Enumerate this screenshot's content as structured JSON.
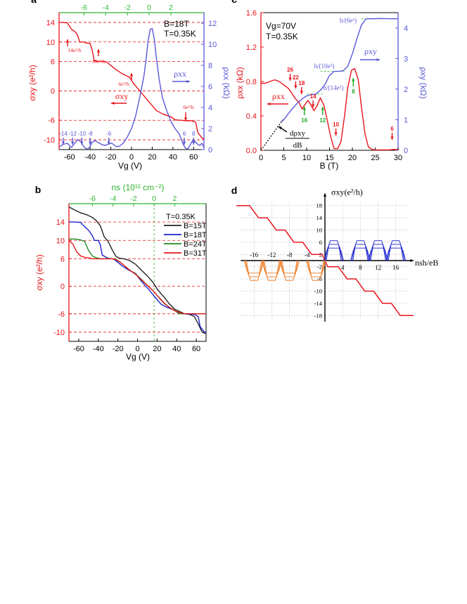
{
  "chart_data": [
    {
      "panel": "a",
      "type": "line",
      "panel_label": "a",
      "annotations_top": [
        "B=18T",
        "T=0.35K"
      ],
      "xlabel": "Vg (V)",
      "ylabel_left": "σxy (e²/h)",
      "ylabel_right": "ρxx (kΩ)",
      "xlim": [
        -70,
        70
      ],
      "ylim_left": [
        -12,
        16
      ],
      "ylim_right": [
        0,
        13
      ],
      "x_ticks": [
        "-60",
        "-40",
        "-20",
        "0",
        "20",
        "40",
        "60"
      ],
      "top_ticks": [
        "-6",
        "-4",
        "-2",
        "0",
        "2"
      ],
      "y_ticks_left": [
        "-10",
        "-6",
        "0",
        "6",
        "10",
        "14"
      ],
      "y_ticks_right": [
        "0",
        "2",
        "4",
        "6",
        "8",
        "10",
        "12"
      ],
      "plateau_lines": [
        14,
        10,
        6,
        -6,
        -10
      ],
      "plateau_labels": [
        "14e²/h",
        "10e²/h",
        "6e²/h",
        "6e²/h"
      ],
      "series_labels": [
        "ρxx",
        "σxy"
      ],
      "filling_labels": [
        "-14",
        "-12",
        "-10",
        "-8",
        "-6",
        "6",
        "8"
      ],
      "series": [
        {
          "name": "σxy",
          "axis": "left",
          "color": "#e8141b",
          "x": [
            -70,
            -66,
            -62,
            -58,
            -54,
            -52,
            -50,
            -46,
            -44,
            -40,
            -38,
            -36,
            -30,
            -26,
            -24,
            -20,
            -16,
            -14,
            -8,
            -2,
            2,
            6,
            12,
            16,
            20,
            24,
            30,
            34,
            38,
            42,
            46,
            48,
            52,
            58,
            62,
            64,
            68,
            70
          ],
          "y": [
            14,
            14,
            13.9,
            12.6,
            12.0,
            11.3,
            10.0,
            10.0,
            9.8,
            9.7,
            8.3,
            6.2,
            6.0,
            6.0,
            5.9,
            5.2,
            4.5,
            4.2,
            3.4,
            2.8,
            1.5,
            0.5,
            -1.0,
            -2.0,
            -3.0,
            -4.0,
            -4.7,
            -5.0,
            -5.3,
            -5.9,
            -6.0,
            -6.0,
            -6.1,
            -6.1,
            -6.4,
            -8.5,
            -9.6,
            -9.9
          ]
        },
        {
          "name": "ρxx",
          "axis": "right",
          "color": "#5a58d8",
          "x": [
            -70,
            -66,
            -62,
            -58,
            -55,
            -52,
            -49,
            -46,
            -43,
            -41,
            -38,
            -35,
            -31,
            -28,
            -25,
            -22,
            -19,
            -15,
            -12,
            -8,
            -4,
            0,
            4,
            8,
            12,
            14,
            16,
            18,
            20,
            22,
            24,
            27,
            30,
            34,
            38,
            42,
            46,
            48,
            50,
            52,
            54,
            56,
            58,
            60,
            62,
            64,
            66,
            68,
            70
          ],
          "y": [
            0.25,
            0.5,
            0.6,
            0.2,
            0.6,
            0.95,
            0.75,
            0.25,
            0.05,
            0.15,
            0.7,
            0.85,
            0.6,
            0.45,
            0.4,
            0.55,
            0.6,
            0.3,
            0.3,
            0.6,
            1.2,
            2.0,
            3.2,
            5.0,
            7.0,
            8.5,
            10.3,
            11.4,
            11.5,
            10.5,
            8.7,
            6.5,
            4.9,
            3.7,
            2.7,
            2.0,
            1.5,
            1.0,
            0.5,
            0.15,
            0.05,
            0.3,
            0.7,
            0.9,
            0.7,
            0.5,
            0.4,
            0.6,
            0.2
          ]
        }
      ]
    },
    {
      "panel": "b",
      "type": "line",
      "panel_label": "b",
      "xlabel": "Vg (V)",
      "ylabel_left": "σxy (e²/h)",
      "top_axis_label": "ns (10¹² cm⁻²)",
      "xlim": [
        -70,
        70
      ],
      "ylim": [
        -12,
        18
      ],
      "x_ticks": [
        "-60",
        "-40",
        "-20",
        "0",
        "20",
        "40",
        "60"
      ],
      "top_ticks": [
        "-6",
        "-4",
        "-2",
        "0",
        "2"
      ],
      "y_ticks": [
        "-10",
        "-6",
        "0",
        "6",
        "10",
        "14"
      ],
      "plateau_lines": [
        14,
        10,
        6,
        -6,
        -10
      ],
      "dirac_point_vg": 17,
      "legend_title": "T=0.35K",
      "legend_position": "top-right",
      "series": [
        {
          "name": "B=15T",
          "color": "#222222",
          "x": [
            -70,
            -64,
            -58,
            -52,
            -46,
            -42,
            -38,
            -34,
            -30,
            -26,
            -22,
            -18,
            -14,
            -8,
            -2,
            4,
            8,
            12,
            16,
            20,
            24,
            28,
            32,
            38,
            44,
            48,
            50,
            54,
            58,
            62,
            66,
            68,
            70
          ],
          "y": [
            17.3,
            16.6,
            16.0,
            15.6,
            15.0,
            14.3,
            13.2,
            10.8,
            9.8,
            8.0,
            6.5,
            6.1,
            6.0,
            5.6,
            4.8,
            3.5,
            2.7,
            1.8,
            0.8,
            -0.6,
            -1.6,
            -2.6,
            -3.7,
            -5.0,
            -5.6,
            -6.0,
            -6.0,
            -6.2,
            -6.6,
            -8.2,
            -10.0,
            -10.2,
            -10.3
          ]
        },
        {
          "name": "B=18T",
          "color": "#1a22cc",
          "x": [
            -70,
            -64,
            -58,
            -54,
            -50,
            -46,
            -44,
            -40,
            -38,
            -36,
            -30,
            -26,
            -24,
            -20,
            -16,
            -14,
            -8,
            -2,
            2,
            6,
            12,
            16,
            20,
            24,
            30,
            34,
            38,
            42,
            46,
            48,
            52,
            58,
            62,
            64,
            68,
            70
          ],
          "y": [
            14,
            14,
            13.9,
            13,
            12.2,
            11.0,
            10.0,
            10.0,
            9.0,
            6.8,
            6.1,
            6.0,
            5.9,
            5.2,
            4.5,
            4.2,
            3.4,
            2.8,
            1.6,
            0.6,
            -0.8,
            -1.9,
            -2.9,
            -3.9,
            -4.6,
            -4.9,
            -5.3,
            -5.9,
            -6.0,
            -6.0,
            -6.1,
            -6.1,
            -6.6,
            -8.8,
            -9.9,
            -10.0
          ]
        },
        {
          "name": "B=24T",
          "color": "#1f8a1f",
          "x": [
            -70,
            -64,
            -58,
            -54,
            -50,
            -46,
            -42,
            -38,
            -34,
            -30,
            -26,
            -22,
            -18,
            -14,
            -8,
            -2,
            4,
            10,
            16,
            20,
            24,
            28,
            32,
            36,
            40,
            44,
            48,
            52,
            56,
            60,
            64,
            68,
            70
          ],
          "y": [
            10.3,
            10.3,
            10.1,
            9.8,
            7.8,
            6.6,
            6.2,
            6.0,
            6.0,
            6.0,
            6.0,
            5.9,
            5.3,
            4.6,
            3.5,
            2.7,
            1.5,
            0.2,
            -1.0,
            -2.0,
            -3.0,
            -3.9,
            -4.5,
            -5.0,
            -5.6,
            -6.0,
            -6.0,
            -6.0,
            -6.0,
            -6.0,
            -6.0,
            -6.0,
            -6.0
          ]
        },
        {
          "name": "B=31T",
          "color": "#e8141b",
          "x": [
            -70,
            -66,
            -62,
            -58,
            -54,
            -50,
            -46,
            -42,
            -38,
            -34,
            -30,
            -26,
            -22,
            -18,
            -14,
            -8,
            -2,
            4,
            10,
            16,
            20,
            24,
            28,
            32,
            36,
            40,
            44,
            48,
            52,
            56,
            60,
            64,
            68,
            70
          ],
          "y": [
            10.0,
            9.2,
            7.5,
            6.6,
            6.3,
            6.2,
            6.0,
            6.0,
            6.0,
            6.0,
            6.0,
            6.0,
            5.8,
            5.3,
            4.6,
            3.5,
            2.6,
            1.4,
            0.2,
            -1.0,
            -2.0,
            -2.9,
            -3.8,
            -4.5,
            -5.1,
            -5.5,
            -5.8,
            -6.0,
            -6.0,
            -6.0,
            -6.0,
            -6.0,
            -6.0,
            -6.0
          ]
        }
      ]
    },
    {
      "panel": "c",
      "type": "line",
      "panel_label": "c",
      "annotations_top": [
        "Vg=70V",
        "T=0.35K"
      ],
      "xlabel": "B (T)",
      "ylabel_left": "ρxx (kΩ)",
      "ylabel_right": "ρxy (kΩ)",
      "xlim": [
        0,
        30
      ],
      "ylim_left": [
        0,
        1.6
      ],
      "ylim_right": [
        0,
        4.5
      ],
      "x_ticks": [
        "0",
        "5",
        "10",
        "15",
        "20",
        "25",
        "30"
      ],
      "y_ticks_left": [
        "0.0",
        "0.4",
        "0.8",
        "1.2",
        "1.6"
      ],
      "y_ticks_right": [
        "0",
        "1",
        "2",
        "3",
        "4"
      ],
      "plateau_labels": [
        "h/(6e²)",
        "h/(10e²)",
        "h/(14e²)"
      ],
      "plateau_values_kohm": [
        4.3,
        2.58,
        1.84
      ],
      "series_labels": [
        "ρxx",
        "ρxy"
      ],
      "slope_label": [
        "dρxy",
        "dB"
      ],
      "filling_labels_red": [
        "26",
        "22",
        "18",
        "14",
        "10",
        "6"
      ],
      "filling_labels_green": [
        "16",
        "12",
        "8"
      ],
      "series": [
        {
          "name": "ρxx",
          "axis": "left",
          "color": "#e8141b",
          "x": [
            0,
            1,
            2,
            3,
            4,
            5,
            6,
            6.8,
            7.5,
            8.3,
            9,
            9.6,
            10.3,
            11,
            11.6,
            12.3,
            13,
            13.8,
            14.5,
            15.3,
            16,
            16.8,
            17.5,
            18.3,
            19,
            19.8,
            20.5,
            21.3,
            22,
            22.8,
            23.5,
            24.3,
            25,
            26,
            27,
            28,
            29,
            30
          ],
          "y": [
            0.78,
            0.78,
            0.8,
            0.82,
            0.8,
            0.76,
            0.72,
            0.66,
            0.6,
            0.56,
            0.48,
            0.53,
            0.58,
            0.52,
            0.46,
            0.52,
            0.61,
            0.52,
            0.35,
            0.15,
            0.02,
            0.02,
            0.1,
            0.4,
            0.73,
            0.93,
            0.95,
            0.82,
            0.5,
            0.18,
            0.04,
            0.01,
            0.005,
            0.005,
            0.005,
            0.005,
            0.01,
            0.01
          ]
        },
        {
          "name": "ρxy",
          "axis": "right",
          "color": "#5a58d8",
          "x": [
            4.5,
            5,
            6,
            7,
            8,
            9,
            10,
            11,
            12,
            13,
            14,
            15,
            16,
            17,
            18,
            19,
            20,
            21,
            22,
            23,
            24,
            25,
            26,
            28,
            30
          ],
          "y": [
            0.93,
            1.0,
            1.2,
            1.38,
            1.55,
            1.68,
            1.78,
            1.82,
            1.84,
            1.96,
            2.15,
            2.45,
            2.58,
            2.58,
            2.6,
            2.75,
            3.15,
            3.65,
            4.1,
            4.3,
            4.3,
            4.3,
            4.31,
            4.3,
            4.3
          ]
        }
      ]
    },
    {
      "panel": "d",
      "type": "line",
      "panel_label": "d",
      "xlabel": "nsh/eB",
      "ylabel": "σxy(e²/h)",
      "xlim": [
        -20,
        20
      ],
      "ylim": [
        -20,
        20
      ],
      "x_tick_labels": [
        "-16",
        "-12",
        "-8",
        "-4",
        "4",
        "8",
        "12",
        "16"
      ],
      "y_tick_labels": [
        "18",
        "14",
        "10",
        "6",
        "2",
        "-2",
        "-6",
        "-10",
        "-14",
        "-18"
      ],
      "staircase_levels": [
        18,
        14,
        10,
        6,
        2,
        -2,
        -6,
        -10,
        -14,
        -18
      ],
      "staircase_color": "#e8141b",
      "peak_positions_positive": [
        2,
        8,
        12,
        16
      ],
      "peak_positions_negative": [
        -16,
        -12,
        -8,
        -2
      ],
      "positive_peak_color": "#1a22cc",
      "negative_peak_color": "#ee7a22"
    }
  ],
  "colors": {
    "sigma": "#e8141b",
    "rho": "#5a58d8",
    "top_axis": "#2fb52f",
    "arrow_green": "#22a822",
    "grid_dashed": "#e8141b"
  }
}
